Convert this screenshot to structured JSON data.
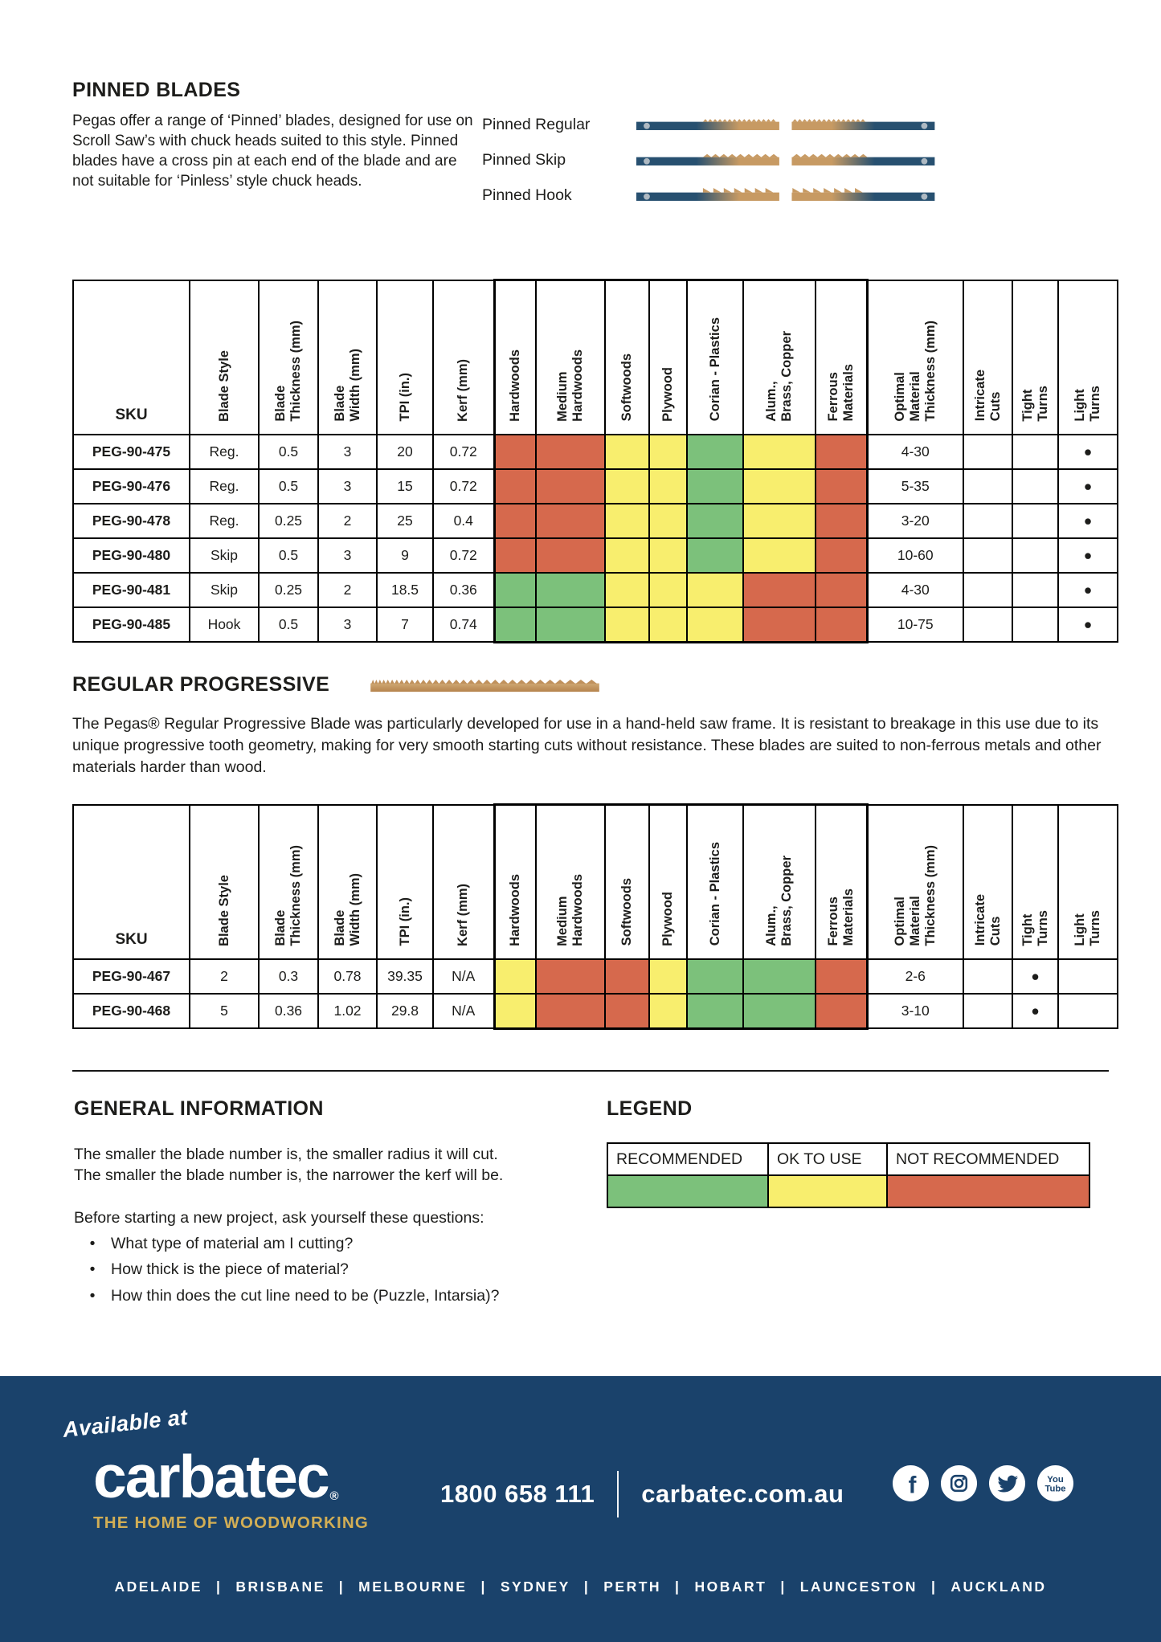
{
  "colors": {
    "rec": "#7cc17b",
    "ok": "#f8ee6e",
    "nr": "#d6694d",
    "navy": "#1a426b",
    "gold": "#d2ae55",
    "blade_navy": "#275070",
    "blade_tan": "#c79a63",
    "blade_pin": "#aeb9c2"
  },
  "pinned": {
    "title": "PINNED BLADES",
    "intro": "Pegas offer a range of ‘Pinned’ blades, designed for use on Scroll Saw’s with chuck heads suited to this style. Pinned blades have a cross pin at each end of the blade and are not suitable for ‘Pinless’ style chuck heads.",
    "types": [
      {
        "label": "Pinned Regular",
        "teeth": "regular"
      },
      {
        "label": "Pinned Skip",
        "teeth": "skip"
      },
      {
        "label": "Pinned Hook",
        "teeth": "hook"
      }
    ]
  },
  "columns": [
    {
      "key": "sku",
      "label": "SKU"
    },
    {
      "key": "style",
      "label": "Blade Style"
    },
    {
      "key": "thickness",
      "label": "Blade\nThickness (mm)"
    },
    {
      "key": "width",
      "label": "Blade\nWidth (mm)"
    },
    {
      "key": "tpi",
      "label": "TPI (in.)"
    },
    {
      "key": "kerf",
      "label": "Kerf (mm)"
    },
    {
      "key": "mat0",
      "label": "Hardwoods"
    },
    {
      "key": "mat1",
      "label": "Medium\nHardwoods"
    },
    {
      "key": "mat2",
      "label": "Softwoods"
    },
    {
      "key": "mat3",
      "label": "Plywood"
    },
    {
      "key": "mat4",
      "label": "Corian  - Plastics"
    },
    {
      "key": "mat5",
      "label": "Alum.,\nBrass, Copper"
    },
    {
      "key": "mat6",
      "label": "Ferrous\nMaterials"
    },
    {
      "key": "optimal",
      "label": "Optimal\nMaterial\nThickness (mm)"
    },
    {
      "key": "intricate",
      "label": "Intricate\nCuts"
    },
    {
      "key": "tight",
      "label": "Tight\nTurns"
    },
    {
      "key": "light",
      "label": "Light\nTurns"
    }
  ],
  "pinned_rows": [
    {
      "sku": "PEG-90-475",
      "style": "Reg.",
      "thickness": "0.5",
      "width": "3",
      "tpi": "20",
      "kerf": "0.72",
      "materials": [
        "nr",
        "nr",
        "ok",
        "ok",
        "rec",
        "ok",
        "nr"
      ],
      "optimal": "4-30",
      "intricate": "",
      "tight": "",
      "light": "●"
    },
    {
      "sku": "PEG-90-476",
      "style": "Reg.",
      "thickness": "0.5",
      "width": "3",
      "tpi": "15",
      "kerf": "0.72",
      "materials": [
        "nr",
        "nr",
        "ok",
        "ok",
        "rec",
        "ok",
        "nr"
      ],
      "optimal": "5-35",
      "intricate": "",
      "tight": "",
      "light": "●"
    },
    {
      "sku": "PEG-90-478",
      "style": "Reg.",
      "thickness": "0.25",
      "width": "2",
      "tpi": "25",
      "kerf": "0.4",
      "materials": [
        "nr",
        "nr",
        "ok",
        "ok",
        "rec",
        "ok",
        "nr"
      ],
      "optimal": "3-20",
      "intricate": "",
      "tight": "",
      "light": "●"
    },
    {
      "sku": "PEG-90-480",
      "style": "Skip",
      "thickness": "0.5",
      "width": "3",
      "tpi": "9",
      "kerf": "0.72",
      "materials": [
        "nr",
        "nr",
        "ok",
        "ok",
        "rec",
        "ok",
        "nr"
      ],
      "optimal": "10-60",
      "intricate": "",
      "tight": "",
      "light": "●"
    },
    {
      "sku": "PEG-90-481",
      "style": "Skip",
      "thickness": "0.25",
      "width": "2",
      "tpi": "18.5",
      "kerf": "0.36",
      "materials": [
        "rec",
        "rec",
        "ok",
        "ok",
        "ok",
        "nr",
        "nr"
      ],
      "optimal": "4-30",
      "intricate": "",
      "tight": "",
      "light": "●"
    },
    {
      "sku": "PEG-90-485",
      "style": "Hook",
      "thickness": "0.5",
      "width": "3",
      "tpi": "7",
      "kerf": "0.74",
      "materials": [
        "rec",
        "rec",
        "ok",
        "ok",
        "ok",
        "nr",
        "nr"
      ],
      "optimal": "10-75",
      "intricate": "",
      "tight": "",
      "light": "●"
    }
  ],
  "progressive": {
    "title": "REGULAR PROGRESSIVE",
    "body": "The Pegas® Regular Progressive Blade was particularly developed for use in a hand-held saw frame. It is resistant to breakage in this use due to its unique progressive tooth geometry, making for very smooth starting cuts without resistance. These blades are suited to non-ferrous metals and other materials harder than wood."
  },
  "progressive_rows": [
    {
      "sku": "PEG-90-467",
      "style": "2",
      "thickness": "0.3",
      "width": "0.78",
      "tpi": "39.35",
      "kerf": "N/A",
      "materials": [
        "ok",
        "nr",
        "nr",
        "ok",
        "rec",
        "rec",
        "nr"
      ],
      "optimal": "2-6",
      "intricate": "",
      "tight": "●",
      "light": ""
    },
    {
      "sku": "PEG-90-468",
      "style": "5",
      "thickness": "0.36",
      "width": "1.02",
      "tpi": "29.8",
      "kerf": "N/A",
      "materials": [
        "ok",
        "nr",
        "nr",
        "ok",
        "rec",
        "rec",
        "nr"
      ],
      "optimal": "3-10",
      "intricate": "",
      "tight": "●",
      "light": ""
    }
  ],
  "general": {
    "title": "GENERAL INFORMATION",
    "line1": "The smaller the blade number is, the smaller radius it will cut.",
    "line2": "The smaller the blade number is, the narrower the kerf will be.",
    "prompt": "Before starting a new project, ask yourself these questions:",
    "bullets": [
      "What type of material am I cutting?",
      "How thick is the piece of material?",
      "How thin does the cut line need to be (Puzzle, Intarsia)?"
    ]
  },
  "legend": {
    "title": "LEGEND",
    "items": [
      {
        "label": "RECOMMENDED",
        "status": "rec"
      },
      {
        "label": "OK TO USE",
        "status": "ok"
      },
      {
        "label": "NOT RECOMMENDED",
        "status": "nr"
      }
    ]
  },
  "footer": {
    "available_at": "Available at",
    "logo": "carbatec",
    "logo_reg": "®",
    "tagline": "THE HOME OF WOODWORKING",
    "phone": "1800 658 111",
    "website": "carbatec.com.au",
    "cities": [
      "ADELAIDE",
      "BRISBANE",
      "MELBOURNE",
      "SYDNEY",
      "PERTH",
      "HOBART",
      "LAUNCESTON",
      "AUCKLAND"
    ]
  }
}
